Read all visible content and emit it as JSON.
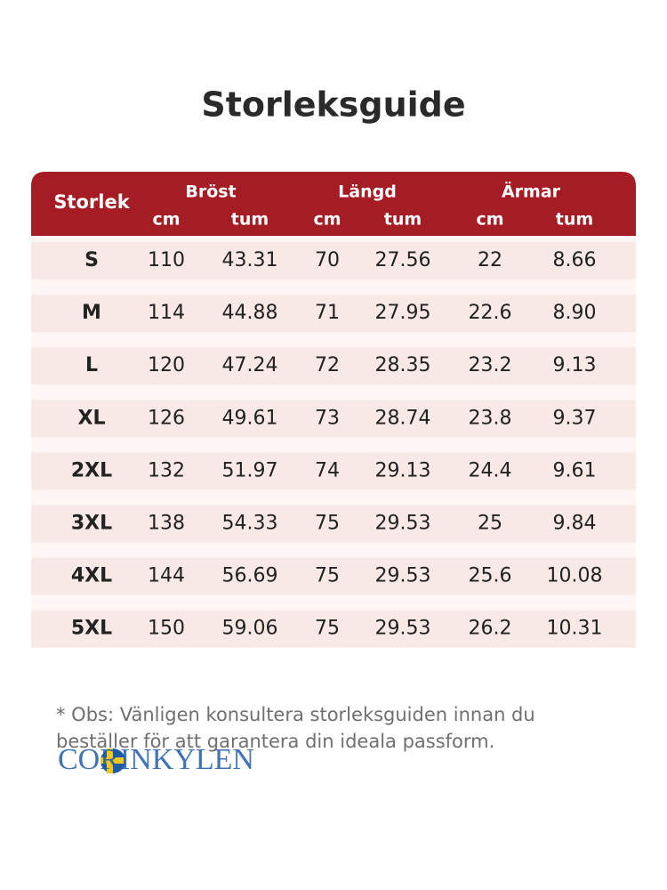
{
  "header": {
    "title": "Storleksguide"
  },
  "table": {
    "size_header": "Storlek",
    "groups": [
      "Bröst",
      "Längd",
      "Ärmar"
    ],
    "units": [
      "cm",
      "tum",
      "cm",
      "tum",
      "cm",
      "tum"
    ],
    "rows": [
      [
        "S",
        "110",
        "43.31",
        "70",
        "27.56",
        "22",
        "8.66"
      ],
      [
        "M",
        "114",
        "44.88",
        "71",
        "27.95",
        "22.6",
        "8.90"
      ],
      [
        "L",
        "120",
        "47.24",
        "72",
        "28.35",
        "23.2",
        "9.13"
      ],
      [
        "XL",
        "126",
        "49.61",
        "73",
        "28.74",
        "23.8",
        "9.37"
      ],
      [
        "2XL",
        "132",
        "51.97",
        "74",
        "29.13",
        "24.4",
        "9.61"
      ],
      [
        "3XL",
        "138",
        "54.33",
        "75",
        "29.53",
        "25",
        "9.84"
      ],
      [
        "4XL",
        "144",
        "56.69",
        "75",
        "29.53",
        "25.6",
        "10.08"
      ],
      [
        "5XL",
        "150",
        "59.06",
        "75",
        "29.53",
        "26.2",
        "10.31"
      ]
    ]
  },
  "note": {
    "lines": [
      "* Obs: Vänligen konsultera storleksguiden innan du",
      "beställer för att garantera din ideala passform."
    ]
  },
  "logo": {
    "text": "CORINKYLEN"
  }
}
